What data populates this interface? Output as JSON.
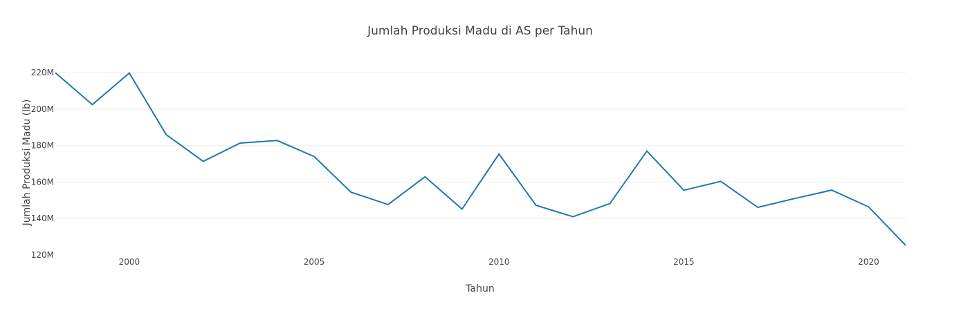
{
  "chart_data": {
    "type": "line",
    "title": "Jumlah Produksi Madu di AS per Tahun",
    "xlabel": "Tahun",
    "ylabel": "Jumlah Produksi Madu (lb)",
    "xlim": [
      1998,
      2021
    ],
    "ylim": [
      120000000,
      225000000
    ],
    "x_ticks": [
      2000,
      2005,
      2010,
      2015,
      2020
    ],
    "y_ticks": [
      120000000,
      140000000,
      160000000,
      180000000,
      200000000,
      220000000
    ],
    "y_tick_labels": [
      "120M",
      "140M",
      "160M",
      "180M",
      "200M",
      "220M"
    ],
    "grid": true,
    "series": [
      {
        "color": "#1f77b4",
        "x": [
          1998,
          1999,
          2000,
          2001,
          2002,
          2003,
          2004,
          2005,
          2006,
          2007,
          2008,
          2009,
          2010,
          2011,
          2012,
          2013,
          2014,
          2015,
          2016,
          2017,
          2018,
          2019,
          2020,
          2021
        ],
        "y": [
          220000000,
          202500000,
          219800000,
          186000000,
          171400000,
          181400000,
          182800000,
          174000000,
          154400000,
          147700000,
          162900000,
          145200000,
          175400000,
          147300000,
          141000000,
          148200000,
          177000000,
          155500000,
          160400000,
          146100000,
          151000000,
          155600000,
          146400000,
          125300000
        ]
      }
    ]
  }
}
